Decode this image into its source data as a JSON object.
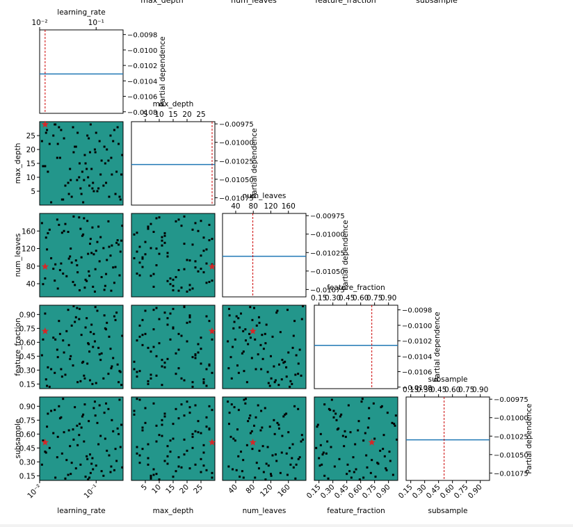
{
  "chart_data": {
    "type": "scatter",
    "title": "",
    "background_color": "#23968b",
    "partial_line_color": "#1f77b4",
    "marker_color": "#000000",
    "best_point_color": "#d62728",
    "best_line_color": "#cc0000",
    "dependence_label": "Partial dependence",
    "top_labels_clipped": [
      "max_depth",
      "num_leaves",
      "feature_fraction",
      "subsample"
    ],
    "best_point": {
      "learning_rate": 0.0125,
      "max_depth": 29,
      "num_leaves": 79,
      "feature_fraction": 0.72,
      "subsample": 0.51
    },
    "dimensions": [
      {
        "name": "learning_rate",
        "scale": "log",
        "range": [
          0.01,
          0.3
        ],
        "ticks": [
          0.01,
          0.1
        ],
        "tick_labels": [
          "10⁻²",
          "10⁻¹"
        ],
        "dep_range": [
          -0.01082,
          -0.00974
        ],
        "dep_value": -0.01031,
        "dep_ticks": [
          -0.0098,
          -0.01,
          -0.0102,
          -0.0104,
          -0.0106,
          -0.0108
        ],
        "dep_tick_labels": [
          "−0.0098",
          "−0.0100",
          "−0.0102",
          "−0.0104",
          "−0.0106",
          "−0.0108"
        ]
      },
      {
        "name": "max_depth",
        "scale": "linear",
        "range": [
          0,
          30
        ],
        "ticks": [
          5,
          10,
          15,
          20,
          25
        ],
        "tick_labels": [
          "5",
          "10",
          "15",
          "20",
          "25"
        ],
        "dep_range": [
          -0.01085,
          -0.00972
        ],
        "dep_value": -0.0103,
        "dep_ticks": [
          -0.00975,
          -0.01,
          -0.01025,
          -0.0105,
          -0.01075
        ],
        "dep_tick_labels": [
          "−0.00975",
          "−0.01000",
          "−0.01025",
          "−0.01050",
          "−0.01075"
        ]
      },
      {
        "name": "num_leaves",
        "scale": "linear",
        "range": [
          10,
          200
        ],
        "ticks": [
          40,
          80,
          120,
          160
        ],
        "tick_labels": [
          "40",
          "80",
          "120",
          "160"
        ],
        "dep_range": [
          -0.01085,
          -0.00972
        ],
        "dep_value": -0.0103,
        "dep_ticks": [
          -0.00975,
          -0.01,
          -0.01025,
          -0.0105,
          -0.01075
        ],
        "dep_tick_labels": [
          "−0.00975",
          "−0.01000",
          "−0.01025",
          "−0.01050",
          "−0.01075"
        ]
      },
      {
        "name": "feature_fraction",
        "scale": "linear",
        "range": [
          0.1,
          1.0
        ],
        "ticks": [
          0.15,
          0.3,
          0.45,
          0.6,
          0.75,
          0.9
        ],
        "tick_labels": [
          "0.15",
          "0.30",
          "0.45",
          "0.60",
          "0.75",
          "0.90"
        ],
        "dep_range": [
          -0.01082,
          -0.00974
        ],
        "dep_value": -0.01026,
        "dep_ticks": [
          -0.0098,
          -0.01,
          -0.0102,
          -0.0104,
          -0.0106,
          -0.0108
        ],
        "dep_tick_labels": [
          "−0.0098",
          "−0.0100",
          "−0.0102",
          "−0.0104",
          "−0.0106",
          "−0.0108"
        ]
      },
      {
        "name": "subsample",
        "scale": "linear",
        "range": [
          0.1,
          1.0
        ],
        "ticks": [
          0.15,
          0.3,
          0.45,
          0.6,
          0.75,
          0.9
        ],
        "tick_labels": [
          "0.15",
          "0.30",
          "0.45",
          "0.60",
          "0.75",
          "0.90"
        ],
        "dep_range": [
          -0.01085,
          -0.00972
        ],
        "dep_value": -0.0103,
        "dep_ticks": [
          -0.00975,
          -0.01,
          -0.01025,
          -0.0105,
          -0.01075
        ],
        "dep_tick_labels": [
          "−0.00975",
          "−0.01000",
          "−0.01025",
          "−0.01050",
          "−0.01075"
        ]
      }
    ],
    "samples": [
      [
        0.014,
        12,
        155,
        0.33,
        0.82
      ],
      [
        0.21,
        27,
        42,
        0.88,
        0.21
      ],
      [
        0.033,
        4,
        97,
        0.57,
        0.64
      ],
      [
        0.078,
        19,
        131,
        0.19,
        0.38
      ],
      [
        0.15,
        8,
        62,
        0.74,
        0.93
      ],
      [
        0.011,
        23,
        178,
        0.46,
        0.27
      ],
      [
        0.051,
        15,
        25,
        0.96,
        0.71
      ],
      [
        0.27,
        2,
        113,
        0.28,
        0.46
      ],
      [
        0.019,
        29,
        84,
        0.63,
        0.13
      ],
      [
        0.12,
        11,
        146,
        0.41,
        0.58
      ],
      [
        0.042,
        21,
        37,
        0.82,
        0.89
      ],
      [
        0.086,
        6,
        168,
        0.15,
        0.34
      ],
      [
        0.023,
        17,
        71,
        0.69,
        0.77
      ],
      [
        0.18,
        25,
        104,
        0.53,
        0.19
      ],
      [
        0.061,
        9,
        189,
        0.24,
        0.52
      ],
      [
        0.0125,
        14,
        52,
        0.91,
        0.41
      ],
      [
        0.24,
        28,
        139,
        0.36,
        0.66
      ],
      [
        0.037,
        3,
        88,
        0.78,
        0.29
      ],
      [
        0.095,
        20,
        22,
        0.61,
        0.95
      ],
      [
        0.135,
        7,
        121,
        0.21,
        0.15
      ],
      [
        0.027,
        24,
        160,
        0.49,
        0.62
      ],
      [
        0.068,
        13,
        46,
        0.86,
        0.36
      ],
      [
        0.016,
        1,
        98,
        0.31,
        0.85
      ],
      [
        0.29,
        18,
        172,
        0.67,
        0.24
      ],
      [
        0.047,
        26,
        66,
        0.17,
        0.48
      ],
      [
        0.105,
        5,
        135,
        0.94,
        0.72
      ],
      [
        0.021,
        22,
        29,
        0.44,
        0.57
      ],
      [
        0.072,
        10,
        108,
        0.59,
        0.11
      ],
      [
        0.165,
        16,
        182,
        0.26,
        0.87
      ],
      [
        0.03,
        30,
        57,
        0.72,
        0.32
      ],
      [
        0.057,
        12,
        149,
        0.38,
        0.79
      ],
      [
        0.22,
        4,
        78,
        0.84,
        0.44
      ],
      [
        0.0135,
        27,
        118,
        0.13,
        0.68
      ],
      [
        0.088,
        8,
        33,
        0.55,
        0.22
      ],
      [
        0.04,
        19,
        193,
        0.99,
        0.54
      ],
      [
        0.115,
        23,
        91,
        0.47,
        0.91
      ],
      [
        0.025,
        2,
        156,
        0.23,
        0.39
      ],
      [
        0.065,
        15,
        49,
        0.76,
        0.14
      ],
      [
        0.19,
        11,
        127,
        0.34,
        0.75
      ],
      [
        0.0175,
        25,
        74,
        0.65,
        0.61
      ],
      [
        0.053,
        6,
        165,
        0.18,
        0.27
      ],
      [
        0.14,
        21,
        26,
        0.89,
        0.83
      ],
      [
        0.0345,
        13,
        102,
        0.42,
        0.47
      ],
      [
        0.08,
        29,
        142,
        0.71,
        0.18
      ],
      [
        0.26,
        3,
        59,
        0.29,
        0.97
      ],
      [
        0.0205,
        17,
        186,
        0.52,
        0.35
      ],
      [
        0.046,
        9,
        82,
        0.97,
        0.69
      ],
      [
        0.1,
        26,
        115,
        0.16,
        0.26
      ],
      [
        0.0115,
        14,
        39,
        0.63,
        0.53
      ],
      [
        0.059,
        1,
        152,
        0.39,
        0.81
      ],
      [
        0.155,
        20,
        94,
        0.81,
        0.42
      ],
      [
        0.0285,
        7,
        176,
        0.25,
        0.12
      ],
      [
        0.074,
        24,
        68,
        0.58,
        0.74
      ],
      [
        0.23,
        12,
        133,
        0.92,
        0.31
      ],
      [
        0.039,
        28,
        44,
        0.35,
        0.65
      ],
      [
        0.091,
        5,
        107,
        0.69,
        0.88
      ],
      [
        0.015,
        22,
        163,
        0.12,
        0.45
      ],
      [
        0.125,
        16,
        55,
        0.48,
        0.2
      ],
      [
        0.05,
        10,
        191,
        0.85,
        0.59
      ],
      [
        0.024,
        27,
        86,
        0.31,
        0.78
      ],
      [
        0.17,
        3,
        124,
        0.66,
        0.37
      ],
      [
        0.063,
        18,
        31,
        0.21,
        0.92
      ],
      [
        0.032,
        8,
        158,
        0.95,
        0.16
      ],
      [
        0.2,
        23,
        77,
        0.43,
        0.63
      ],
      [
        0.083,
        13,
        110,
        0.79,
        0.28
      ],
      [
        0.0185,
        29,
        47,
        0.27,
        0.86
      ],
      [
        0.11,
        6,
        170,
        0.54,
        0.49
      ],
      [
        0.044,
        21,
        93,
        0.87,
        0.23
      ],
      [
        0.28,
        11,
        138,
        0.14,
        0.7
      ],
      [
        0.026,
        2,
        63,
        0.62,
        0.98
      ],
      [
        0.07,
        25,
        183,
        0.37,
        0.33
      ],
      [
        0.145,
        15,
        35,
        0.75,
        0.55
      ],
      [
        0.0355,
        9,
        120,
        0.45,
        0.17
      ],
      [
        0.097,
        19,
        73,
        0.98,
        0.8
      ],
      [
        0.013,
        26,
        145,
        0.2,
        0.4
      ],
      [
        0.055,
        4,
        100,
        0.68,
        0.67
      ],
      [
        0.185,
        17,
        24,
        0.32,
        0.25
      ],
      [
        0.022,
        28,
        174,
        0.83,
        0.9
      ],
      [
        0.076,
        7,
        58,
        0.5,
        0.13
      ],
      [
        0.25,
        22,
        129,
        0.17,
        0.6
      ]
    ]
  }
}
